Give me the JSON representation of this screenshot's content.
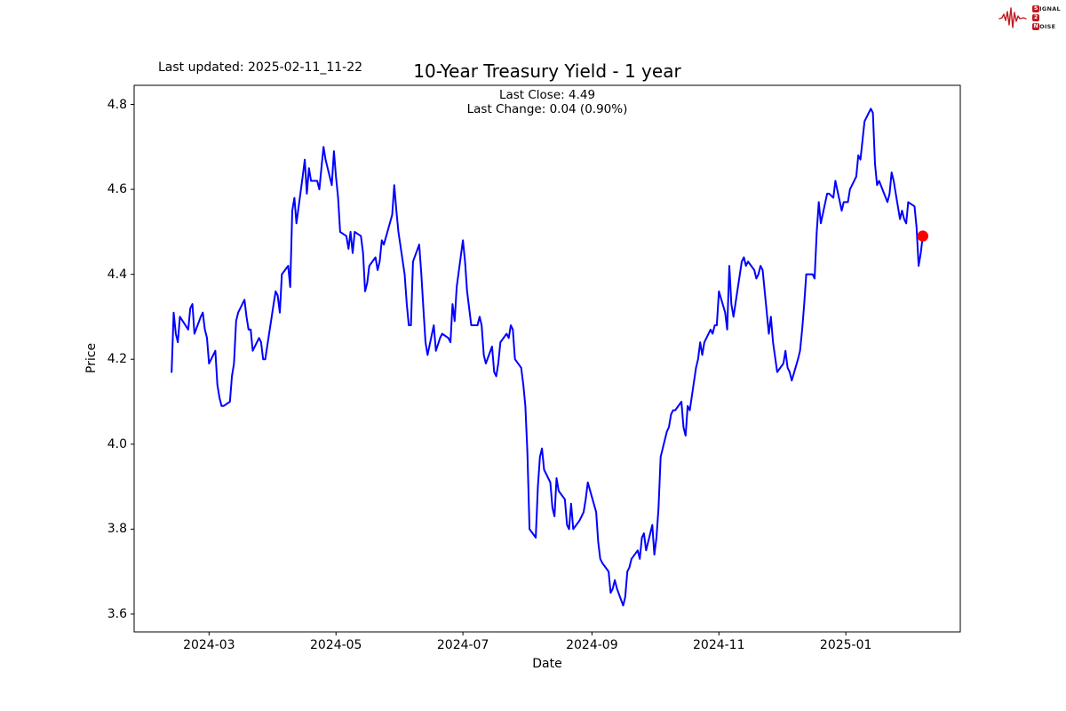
{
  "header": {
    "last_updated": "Last updated: 2025-02-11_11-22",
    "title": "10-Year Treasury Yield - 1 year"
  },
  "logo": {
    "letter_s": "S",
    "rest_signal": "IGNAL",
    "digit": "2",
    "letter_n": "N",
    "rest_noise": "OISE",
    "color": "#bf1b22"
  },
  "chart_data": {
    "type": "line",
    "title": "10-Year Treasury Yield - 1 year",
    "subtitle_lines": [
      "Last Close: 4.49",
      "Last Change: 0.04 (0.90%)"
    ],
    "last_close": 4.49,
    "last_change": "0.04 (0.90%)",
    "xlabel": "Date",
    "ylabel": "Price",
    "grid": false,
    "legend": "none",
    "line_color": "#0000ff",
    "marker_color": "#ff0000",
    "frame_color": "#000000",
    "ylim": [
      3.558,
      4.845
    ],
    "xlim": [
      "2024-01-25",
      "2025-02-25"
    ],
    "y_ticks": [
      3.6,
      3.8,
      4.0,
      4.2,
      4.4,
      4.6,
      4.8
    ],
    "x_ticks": [
      {
        "label": "2024-03",
        "date": "2024-03-01"
      },
      {
        "label": "2024-05",
        "date": "2024-05-01"
      },
      {
        "label": "2024-07",
        "date": "2024-07-01"
      },
      {
        "label": "2024-09",
        "date": "2024-09-01"
      },
      {
        "label": "2024-11",
        "date": "2024-11-01"
      },
      {
        "label": "2025-01",
        "date": "2025-01-01"
      }
    ],
    "series": [
      {
        "name": "10-Year Treasury Yield",
        "points": [
          [
            "2024-02-12",
            4.17
          ],
          [
            "2024-02-13",
            4.31
          ],
          [
            "2024-02-14",
            4.26
          ],
          [
            "2024-02-15",
            4.24
          ],
          [
            "2024-02-16",
            4.3
          ],
          [
            "2024-02-20",
            4.27
          ],
          [
            "2024-02-21",
            4.32
          ],
          [
            "2024-02-22",
            4.33
          ],
          [
            "2024-02-23",
            4.26
          ],
          [
            "2024-02-26",
            4.3
          ],
          [
            "2024-02-27",
            4.31
          ],
          [
            "2024-02-28",
            4.27
          ],
          [
            "2024-02-29",
            4.25
          ],
          [
            "2024-03-01",
            4.19
          ],
          [
            "2024-03-04",
            4.22
          ],
          [
            "2024-03-05",
            4.14
          ],
          [
            "2024-03-06",
            4.11
          ],
          [
            "2024-03-07",
            4.09
          ],
          [
            "2024-03-08",
            4.09
          ],
          [
            "2024-03-11",
            4.1
          ],
          [
            "2024-03-12",
            4.16
          ],
          [
            "2024-03-13",
            4.19
          ],
          [
            "2024-03-14",
            4.29
          ],
          [
            "2024-03-15",
            4.31
          ],
          [
            "2024-03-18",
            4.34
          ],
          [
            "2024-03-19",
            4.3
          ],
          [
            "2024-03-20",
            4.27
          ],
          [
            "2024-03-21",
            4.27
          ],
          [
            "2024-03-22",
            4.22
          ],
          [
            "2024-03-25",
            4.25
          ],
          [
            "2024-03-26",
            4.24
          ],
          [
            "2024-03-27",
            4.2
          ],
          [
            "2024-03-28",
            4.2
          ],
          [
            "2024-04-01",
            4.33
          ],
          [
            "2024-04-02",
            4.36
          ],
          [
            "2024-04-03",
            4.35
          ],
          [
            "2024-04-04",
            4.31
          ],
          [
            "2024-04-05",
            4.4
          ],
          [
            "2024-04-08",
            4.42
          ],
          [
            "2024-04-09",
            4.37
          ],
          [
            "2024-04-10",
            4.55
          ],
          [
            "2024-04-11",
            4.58
          ],
          [
            "2024-04-12",
            4.52
          ],
          [
            "2024-04-15",
            4.63
          ],
          [
            "2024-04-16",
            4.67
          ],
          [
            "2024-04-17",
            4.59
          ],
          [
            "2024-04-18",
            4.65
          ],
          [
            "2024-04-19",
            4.62
          ],
          [
            "2024-04-22",
            4.62
          ],
          [
            "2024-04-23",
            4.6
          ],
          [
            "2024-04-24",
            4.65
          ],
          [
            "2024-04-25",
            4.7
          ],
          [
            "2024-04-26",
            4.67
          ],
          [
            "2024-04-29",
            4.61
          ],
          [
            "2024-04-30",
            4.69
          ],
          [
            "2024-05-01",
            4.63
          ],
          [
            "2024-05-02",
            4.58
          ],
          [
            "2024-05-03",
            4.5
          ],
          [
            "2024-05-06",
            4.49
          ],
          [
            "2024-05-07",
            4.46
          ],
          [
            "2024-05-08",
            4.5
          ],
          [
            "2024-05-09",
            4.45
          ],
          [
            "2024-05-10",
            4.5
          ],
          [
            "2024-05-13",
            4.49
          ],
          [
            "2024-05-14",
            4.45
          ],
          [
            "2024-05-15",
            4.36
          ],
          [
            "2024-05-16",
            4.38
          ],
          [
            "2024-05-17",
            4.42
          ],
          [
            "2024-05-20",
            4.44
          ],
          [
            "2024-05-21",
            4.41
          ],
          [
            "2024-05-22",
            4.43
          ],
          [
            "2024-05-23",
            4.48
          ],
          [
            "2024-05-24",
            4.47
          ],
          [
            "2024-05-28",
            4.54
          ],
          [
            "2024-05-29",
            4.61
          ],
          [
            "2024-05-30",
            4.55
          ],
          [
            "2024-05-31",
            4.5
          ],
          [
            "2024-06-03",
            4.4
          ],
          [
            "2024-06-04",
            4.33
          ],
          [
            "2024-06-05",
            4.28
          ],
          [
            "2024-06-06",
            4.28
          ],
          [
            "2024-06-07",
            4.43
          ],
          [
            "2024-06-10",
            4.47
          ],
          [
            "2024-06-11",
            4.4
          ],
          [
            "2024-06-12",
            4.32
          ],
          [
            "2024-06-13",
            4.24
          ],
          [
            "2024-06-14",
            4.21
          ],
          [
            "2024-06-17",
            4.28
          ],
          [
            "2024-06-18",
            4.22
          ],
          [
            "2024-06-20",
            4.25
          ],
          [
            "2024-06-21",
            4.26
          ],
          [
            "2024-06-24",
            4.25
          ],
          [
            "2024-06-25",
            4.24
          ],
          [
            "2024-06-26",
            4.33
          ],
          [
            "2024-06-27",
            4.29
          ],
          [
            "2024-06-28",
            4.37
          ],
          [
            "2024-07-01",
            4.48
          ],
          [
            "2024-07-02",
            4.43
          ],
          [
            "2024-07-03",
            4.36
          ],
          [
            "2024-07-05",
            4.28
          ],
          [
            "2024-07-08",
            4.28
          ],
          [
            "2024-07-09",
            4.3
          ],
          [
            "2024-07-10",
            4.28
          ],
          [
            "2024-07-11",
            4.21
          ],
          [
            "2024-07-12",
            4.19
          ],
          [
            "2024-07-15",
            4.23
          ],
          [
            "2024-07-16",
            4.17
          ],
          [
            "2024-07-17",
            4.16
          ],
          [
            "2024-07-18",
            4.19
          ],
          [
            "2024-07-19",
            4.24
          ],
          [
            "2024-07-22",
            4.26
          ],
          [
            "2024-07-23",
            4.25
          ],
          [
            "2024-07-24",
            4.28
          ],
          [
            "2024-07-25",
            4.27
          ],
          [
            "2024-07-26",
            4.2
          ],
          [
            "2024-07-29",
            4.18
          ],
          [
            "2024-07-30",
            4.14
          ],
          [
            "2024-07-31",
            4.09
          ],
          [
            "2024-08-01",
            3.98
          ],
          [
            "2024-08-02",
            3.8
          ],
          [
            "2024-08-05",
            3.78
          ],
          [
            "2024-08-06",
            3.9
          ],
          [
            "2024-08-07",
            3.97
          ],
          [
            "2024-08-08",
            3.99
          ],
          [
            "2024-08-09",
            3.94
          ],
          [
            "2024-08-12",
            3.91
          ],
          [
            "2024-08-13",
            3.85
          ],
          [
            "2024-08-14",
            3.83
          ],
          [
            "2024-08-15",
            3.92
          ],
          [
            "2024-08-16",
            3.89
          ],
          [
            "2024-08-19",
            3.87
          ],
          [
            "2024-08-20",
            3.81
          ],
          [
            "2024-08-21",
            3.8
          ],
          [
            "2024-08-22",
            3.86
          ],
          [
            "2024-08-23",
            3.8
          ],
          [
            "2024-08-26",
            3.82
          ],
          [
            "2024-08-27",
            3.83
          ],
          [
            "2024-08-28",
            3.84
          ],
          [
            "2024-08-29",
            3.87
          ],
          [
            "2024-08-30",
            3.91
          ],
          [
            "2024-09-03",
            3.84
          ],
          [
            "2024-09-04",
            3.77
          ],
          [
            "2024-09-05",
            3.73
          ],
          [
            "2024-09-06",
            3.72
          ],
          [
            "2024-09-09",
            3.7
          ],
          [
            "2024-09-10",
            3.65
          ],
          [
            "2024-09-11",
            3.66
          ],
          [
            "2024-09-12",
            3.68
          ],
          [
            "2024-09-13",
            3.66
          ],
          [
            "2024-09-16",
            3.62
          ],
          [
            "2024-09-17",
            3.64
          ],
          [
            "2024-09-18",
            3.7
          ],
          [
            "2024-09-19",
            3.71
          ],
          [
            "2024-09-20",
            3.73
          ],
          [
            "2024-09-23",
            3.75
          ],
          [
            "2024-09-24",
            3.73
          ],
          [
            "2024-09-25",
            3.78
          ],
          [
            "2024-09-26",
            3.79
          ],
          [
            "2024-09-27",
            3.75
          ],
          [
            "2024-09-30",
            3.81
          ],
          [
            "2024-10-01",
            3.74
          ],
          [
            "2024-10-02",
            3.78
          ],
          [
            "2024-10-03",
            3.85
          ],
          [
            "2024-10-04",
            3.97
          ],
          [
            "2024-10-07",
            4.03
          ],
          [
            "2024-10-08",
            4.04
          ],
          [
            "2024-10-09",
            4.07
          ],
          [
            "2024-10-10",
            4.08
          ],
          [
            "2024-10-11",
            4.08
          ],
          [
            "2024-10-14",
            4.1
          ],
          [
            "2024-10-15",
            4.04
          ],
          [
            "2024-10-16",
            4.02
          ],
          [
            "2024-10-17",
            4.09
          ],
          [
            "2024-10-18",
            4.08
          ],
          [
            "2024-10-21",
            4.18
          ],
          [
            "2024-10-22",
            4.2
          ],
          [
            "2024-10-23",
            4.24
          ],
          [
            "2024-10-24",
            4.21
          ],
          [
            "2024-10-25",
            4.24
          ],
          [
            "2024-10-28",
            4.27
          ],
          [
            "2024-10-29",
            4.26
          ],
          [
            "2024-10-30",
            4.28
          ],
          [
            "2024-10-31",
            4.28
          ],
          [
            "2024-11-01",
            4.36
          ],
          [
            "2024-11-04",
            4.31
          ],
          [
            "2024-11-05",
            4.27
          ],
          [
            "2024-11-06",
            4.42
          ],
          [
            "2024-11-07",
            4.33
          ],
          [
            "2024-11-08",
            4.3
          ],
          [
            "2024-11-12",
            4.43
          ],
          [
            "2024-11-13",
            4.44
          ],
          [
            "2024-11-14",
            4.42
          ],
          [
            "2024-11-15",
            4.43
          ],
          [
            "2024-11-18",
            4.41
          ],
          [
            "2024-11-19",
            4.39
          ],
          [
            "2024-11-20",
            4.4
          ],
          [
            "2024-11-21",
            4.42
          ],
          [
            "2024-11-22",
            4.41
          ],
          [
            "2024-11-25",
            4.26
          ],
          [
            "2024-11-26",
            4.3
          ],
          [
            "2024-11-27",
            4.24
          ],
          [
            "2024-11-29",
            4.17
          ],
          [
            "2024-12-02",
            4.19
          ],
          [
            "2024-12-03",
            4.22
          ],
          [
            "2024-12-04",
            4.18
          ],
          [
            "2024-12-05",
            4.17
          ],
          [
            "2024-12-06",
            4.15
          ],
          [
            "2024-12-09",
            4.2
          ],
          [
            "2024-12-10",
            4.22
          ],
          [
            "2024-12-11",
            4.27
          ],
          [
            "2024-12-12",
            4.33
          ],
          [
            "2024-12-13",
            4.4
          ],
          [
            "2024-12-16",
            4.4
          ],
          [
            "2024-12-17",
            4.39
          ],
          [
            "2024-12-18",
            4.5
          ],
          [
            "2024-12-19",
            4.57
          ],
          [
            "2024-12-20",
            4.52
          ],
          [
            "2024-12-23",
            4.59
          ],
          [
            "2024-12-24",
            4.59
          ],
          [
            "2024-12-26",
            4.58
          ],
          [
            "2024-12-27",
            4.62
          ],
          [
            "2024-12-30",
            4.55
          ],
          [
            "2024-12-31",
            4.57
          ],
          [
            "2025-01-02",
            4.57
          ],
          [
            "2025-01-03",
            4.6
          ],
          [
            "2025-01-06",
            4.63
          ],
          [
            "2025-01-07",
            4.68
          ],
          [
            "2025-01-08",
            4.67
          ],
          [
            "2025-01-10",
            4.76
          ],
          [
            "2025-01-13",
            4.79
          ],
          [
            "2025-01-14",
            4.78
          ],
          [
            "2025-01-15",
            4.66
          ],
          [
            "2025-01-16",
            4.61
          ],
          [
            "2025-01-17",
            4.62
          ],
          [
            "2025-01-21",
            4.57
          ],
          [
            "2025-01-22",
            4.59
          ],
          [
            "2025-01-23",
            4.64
          ],
          [
            "2025-01-24",
            4.62
          ],
          [
            "2025-01-27",
            4.53
          ],
          [
            "2025-01-28",
            4.55
          ],
          [
            "2025-01-29",
            4.53
          ],
          [
            "2025-01-30",
            4.52
          ],
          [
            "2025-01-31",
            4.57
          ],
          [
            "2025-02-03",
            4.56
          ],
          [
            "2025-02-04",
            4.51
          ],
          [
            "2025-02-05",
            4.42
          ],
          [
            "2025-02-06",
            4.45
          ],
          [
            "2025-02-07",
            4.49
          ]
        ]
      }
    ]
  }
}
